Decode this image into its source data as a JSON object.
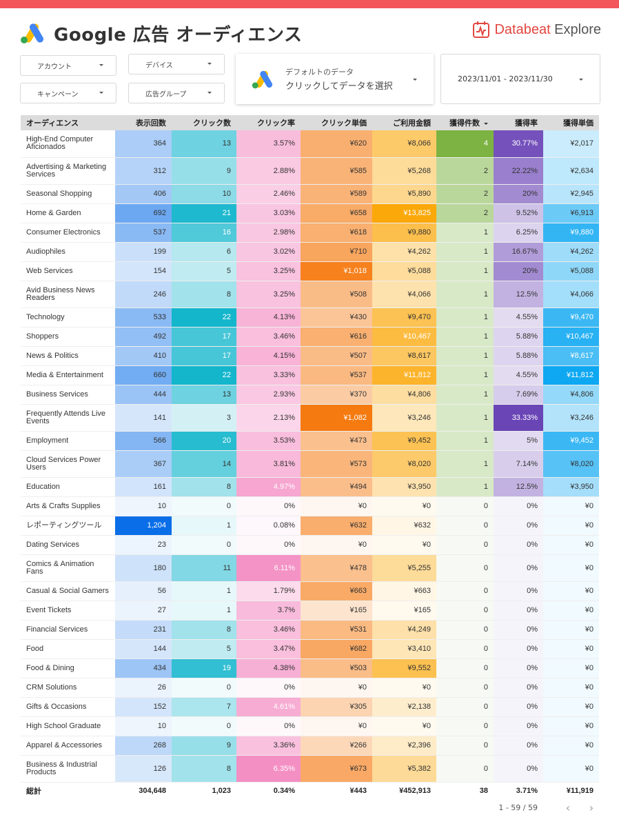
{
  "title": "Google 広告 オーディエンス",
  "brand": {
    "name_main": "Databeat",
    "name_sub": " Explore"
  },
  "filters": {
    "account": "アカウント",
    "campaign": "キャンペーン",
    "device": "デバイス",
    "adgroup": "広告グループ"
  },
  "data_selector": {
    "line1": "デフォルトのデータ",
    "line2": "クリックしてデータを選択"
  },
  "date_range": "2023/11/01 - 2023/11/30",
  "columns": [
    "オーディエンス",
    "表示回数",
    "クリック数",
    "クリック率",
    "クリック単価",
    "ご利用金額",
    "獲得件数",
    "獲得率",
    "獲得単価"
  ],
  "rows": [
    {
      "name": "High-End Computer Aficionados",
      "imp": 364,
      "imp_t": "364",
      "clk": 13,
      "clk_t": "13",
      "ctr": 3.57,
      "ctr_t": "3.57%",
      "cpc": 620,
      "cpc_t": "¥620",
      "cost": 8066,
      "cost_t": "¥8,066",
      "cv": 4,
      "cv_t": "4",
      "cvr": 30.77,
      "cvr_t": "30.77%",
      "cpa": 2017,
      "cpa_t": "¥2,017"
    },
    {
      "name": "Advertising & Marketing Services",
      "imp": 312,
      "imp_t": "312",
      "clk": 9,
      "clk_t": "9",
      "ctr": 2.88,
      "ctr_t": "2.88%",
      "cpc": 585,
      "cpc_t": "¥585",
      "cost": 5268,
      "cost_t": "¥5,268",
      "cv": 2,
      "cv_t": "2",
      "cvr": 22.22,
      "cvr_t": "22.22%",
      "cpa": 2634,
      "cpa_t": "¥2,634"
    },
    {
      "name": "Seasonal Shopping",
      "imp": 406,
      "imp_t": "406",
      "clk": 10,
      "clk_t": "10",
      "ctr": 2.46,
      "ctr_t": "2.46%",
      "cpc": 589,
      "cpc_t": "¥589",
      "cost": 5890,
      "cost_t": "¥5,890",
      "cv": 2,
      "cv_t": "2",
      "cvr": 20,
      "cvr_t": "20%",
      "cpa": 2945,
      "cpa_t": "¥2,945"
    },
    {
      "name": "Home & Garden",
      "imp": 692,
      "imp_t": "692",
      "clk": 21,
      "clk_t": "21",
      "ctr": 3.03,
      "ctr_t": "3.03%",
      "cpc": 658,
      "cpc_t": "¥658",
      "cost": 13825,
      "cost_t": "¥13,825",
      "cv": 2,
      "cv_t": "2",
      "cvr": 9.52,
      "cvr_t": "9.52%",
      "cpa": 6913,
      "cpa_t": "¥6,913"
    },
    {
      "name": "Consumer Electronics",
      "imp": 537,
      "imp_t": "537",
      "clk": 16,
      "clk_t": "16",
      "ctr": 2.98,
      "ctr_t": "2.98%",
      "cpc": 618,
      "cpc_t": "¥618",
      "cost": 9880,
      "cost_t": "¥9,880",
      "cv": 1,
      "cv_t": "1",
      "cvr": 6.25,
      "cvr_t": "6.25%",
      "cpa": 9880,
      "cpa_t": "¥9,880"
    },
    {
      "name": "Audiophiles",
      "imp": 199,
      "imp_t": "199",
      "clk": 6,
      "clk_t": "6",
      "ctr": 3.02,
      "ctr_t": "3.02%",
      "cpc": 710,
      "cpc_t": "¥710",
      "cost": 4262,
      "cost_t": "¥4,262",
      "cv": 1,
      "cv_t": "1",
      "cvr": 16.67,
      "cvr_t": "16.67%",
      "cpa": 4262,
      "cpa_t": "¥4,262"
    },
    {
      "name": "Web Services",
      "imp": 154,
      "imp_t": "154",
      "clk": 5,
      "clk_t": "5",
      "ctr": 3.25,
      "ctr_t": "3.25%",
      "cpc": 1018,
      "cpc_t": "¥1,018",
      "cost": 5088,
      "cost_t": "¥5,088",
      "cv": 1,
      "cv_t": "1",
      "cvr": 20,
      "cvr_t": "20%",
      "cpa": 5088,
      "cpa_t": "¥5,088"
    },
    {
      "name": "Avid Business News Readers",
      "imp": 246,
      "imp_t": "246",
      "clk": 8,
      "clk_t": "8",
      "ctr": 3.25,
      "ctr_t": "3.25%",
      "cpc": 508,
      "cpc_t": "¥508",
      "cost": 4066,
      "cost_t": "¥4,066",
      "cv": 1,
      "cv_t": "1",
      "cvr": 12.5,
      "cvr_t": "12.5%",
      "cpa": 4066,
      "cpa_t": "¥4,066"
    },
    {
      "name": "Technology",
      "imp": 533,
      "imp_t": "533",
      "clk": 22,
      "clk_t": "22",
      "ctr": 4.13,
      "ctr_t": "4.13%",
      "cpc": 430,
      "cpc_t": "¥430",
      "cost": 9470,
      "cost_t": "¥9,470",
      "cv": 1,
      "cv_t": "1",
      "cvr": 4.55,
      "cvr_t": "4.55%",
      "cpa": 9470,
      "cpa_t": "¥9,470"
    },
    {
      "name": "Shoppers",
      "imp": 492,
      "imp_t": "492",
      "clk": 17,
      "clk_t": "17",
      "ctr": 3.46,
      "ctr_t": "3.46%",
      "cpc": 616,
      "cpc_t": "¥616",
      "cost": 10467,
      "cost_t": "¥10,467",
      "cv": 1,
      "cv_t": "1",
      "cvr": 5.88,
      "cvr_t": "5.88%",
      "cpa": 10467,
      "cpa_t": "¥10,467"
    },
    {
      "name": "News & Politics",
      "imp": 410,
      "imp_t": "410",
      "clk": 17,
      "clk_t": "17",
      "ctr": 4.15,
      "ctr_t": "4.15%",
      "cpc": 507,
      "cpc_t": "¥507",
      "cost": 8617,
      "cost_t": "¥8,617",
      "cv": 1,
      "cv_t": "1",
      "cvr": 5.88,
      "cvr_t": "5.88%",
      "cpa": 8617,
      "cpa_t": "¥8,617"
    },
    {
      "name": "Media & Entertainment",
      "imp": 660,
      "imp_t": "660",
      "clk": 22,
      "clk_t": "22",
      "ctr": 3.33,
      "ctr_t": "3.33%",
      "cpc": 537,
      "cpc_t": "¥537",
      "cost": 11812,
      "cost_t": "¥11,812",
      "cv": 1,
      "cv_t": "1",
      "cvr": 4.55,
      "cvr_t": "4.55%",
      "cpa": 11812,
      "cpa_t": "¥11,812"
    },
    {
      "name": "Business Services",
      "imp": 444,
      "imp_t": "444",
      "clk": 13,
      "clk_t": "13",
      "ctr": 2.93,
      "ctr_t": "2.93%",
      "cpc": 370,
      "cpc_t": "¥370",
      "cost": 4806,
      "cost_t": "¥4,806",
      "cv": 1,
      "cv_t": "1",
      "cvr": 7.69,
      "cvr_t": "7.69%",
      "cpa": 4806,
      "cpa_t": "¥4,806"
    },
    {
      "name": "Frequently Attends Live Events",
      "imp": 141,
      "imp_t": "141",
      "clk": 3,
      "clk_t": "3",
      "ctr": 2.13,
      "ctr_t": "2.13%",
      "cpc": 1082,
      "cpc_t": "¥1,082",
      "cost": 3246,
      "cost_t": "¥3,246",
      "cv": 1,
      "cv_t": "1",
      "cvr": 33.33,
      "cvr_t": "33.33%",
      "cpa": 3246,
      "cpa_t": "¥3,246"
    },
    {
      "name": "Employment",
      "imp": 566,
      "imp_t": "566",
      "clk": 20,
      "clk_t": "20",
      "ctr": 3.53,
      "ctr_t": "3.53%",
      "cpc": 473,
      "cpc_t": "¥473",
      "cost": 9452,
      "cost_t": "¥9,452",
      "cv": 1,
      "cv_t": "1",
      "cvr": 5,
      "cvr_t": "5%",
      "cpa": 9452,
      "cpa_t": "¥9,452"
    },
    {
      "name": "Cloud Services Power Users",
      "imp": 367,
      "imp_t": "367",
      "clk": 14,
      "clk_t": "14",
      "ctr": 3.81,
      "ctr_t": "3.81%",
      "cpc": 573,
      "cpc_t": "¥573",
      "cost": 8020,
      "cost_t": "¥8,020",
      "cv": 1,
      "cv_t": "1",
      "cvr": 7.14,
      "cvr_t": "7.14%",
      "cpa": 8020,
      "cpa_t": "¥8,020"
    },
    {
      "name": "Education",
      "imp": 161,
      "imp_t": "161",
      "clk": 8,
      "clk_t": "8",
      "ctr": 4.97,
      "ctr_t": "4.97%",
      "cpc": 494,
      "cpc_t": "¥494",
      "cost": 3950,
      "cost_t": "¥3,950",
      "cv": 1,
      "cv_t": "1",
      "cvr": 12.5,
      "cvr_t": "12.5%",
      "cpa": 3950,
      "cpa_t": "¥3,950"
    },
    {
      "name": "Arts & Crafts Supplies",
      "imp": 10,
      "imp_t": "10",
      "clk": 0,
      "clk_t": "0",
      "ctr": 0,
      "ctr_t": "0%",
      "cpc": 0,
      "cpc_t": "¥0",
      "cost": 0,
      "cost_t": "¥0",
      "cv": 0,
      "cv_t": "0",
      "cvr": 0,
      "cvr_t": "0%",
      "cpa": 0,
      "cpa_t": "¥0"
    },
    {
      "name": "レポーティングツール",
      "imp": 1204,
      "imp_t": "1,204",
      "clk": 1,
      "clk_t": "1",
      "ctr": 0.08,
      "ctr_t": "0.08%",
      "cpc": 632,
      "cpc_t": "¥632",
      "cost": 632,
      "cost_t": "¥632",
      "cv": 0,
      "cv_t": "0",
      "cvr": 0,
      "cvr_t": "0%",
      "cpa": 0,
      "cpa_t": "¥0"
    },
    {
      "name": "Dating Services",
      "imp": 23,
      "imp_t": "23",
      "clk": 0,
      "clk_t": "0",
      "ctr": 0,
      "ctr_t": "0%",
      "cpc": 0,
      "cpc_t": "¥0",
      "cost": 0,
      "cost_t": "¥0",
      "cv": 0,
      "cv_t": "0",
      "cvr": 0,
      "cvr_t": "0%",
      "cpa": 0,
      "cpa_t": "¥0"
    },
    {
      "name": "Comics & Animation Fans",
      "imp": 180,
      "imp_t": "180",
      "clk": 11,
      "clk_t": "11",
      "ctr": 6.11,
      "ctr_t": "6.11%",
      "cpc": 478,
      "cpc_t": "¥478",
      "cost": 5255,
      "cost_t": "¥5,255",
      "cv": 0,
      "cv_t": "0",
      "cvr": 0,
      "cvr_t": "0%",
      "cpa": 0,
      "cpa_t": "¥0"
    },
    {
      "name": "Casual & Social Gamers",
      "imp": 56,
      "imp_t": "56",
      "clk": 1,
      "clk_t": "1",
      "ctr": 1.79,
      "ctr_t": "1.79%",
      "cpc": 663,
      "cpc_t": "¥663",
      "cost": 663,
      "cost_t": "¥663",
      "cv": 0,
      "cv_t": "0",
      "cvr": 0,
      "cvr_t": "0%",
      "cpa": 0,
      "cpa_t": "¥0"
    },
    {
      "name": "Event Tickets",
      "imp": 27,
      "imp_t": "27",
      "clk": 1,
      "clk_t": "1",
      "ctr": 3.7,
      "ctr_t": "3.7%",
      "cpc": 165,
      "cpc_t": "¥165",
      "cost": 165,
      "cost_t": "¥165",
      "cv": 0,
      "cv_t": "0",
      "cvr": 0,
      "cvr_t": "0%",
      "cpa": 0,
      "cpa_t": "¥0"
    },
    {
      "name": "Financial Services",
      "imp": 231,
      "imp_t": "231",
      "clk": 8,
      "clk_t": "8",
      "ctr": 3.46,
      "ctr_t": "3.46%",
      "cpc": 531,
      "cpc_t": "¥531",
      "cost": 4249,
      "cost_t": "¥4,249",
      "cv": 0,
      "cv_t": "0",
      "cvr": 0,
      "cvr_t": "0%",
      "cpa": 0,
      "cpa_t": "¥0"
    },
    {
      "name": "Food",
      "imp": 144,
      "imp_t": "144",
      "clk": 5,
      "clk_t": "5",
      "ctr": 3.47,
      "ctr_t": "3.47%",
      "cpc": 682,
      "cpc_t": "¥682",
      "cost": 3410,
      "cost_t": "¥3,410",
      "cv": 0,
      "cv_t": "0",
      "cvr": 0,
      "cvr_t": "0%",
      "cpa": 0,
      "cpa_t": "¥0"
    },
    {
      "name": "Food & Dining",
      "imp": 434,
      "imp_t": "434",
      "clk": 19,
      "clk_t": "19",
      "ctr": 4.38,
      "ctr_t": "4.38%",
      "cpc": 503,
      "cpc_t": "¥503",
      "cost": 9552,
      "cost_t": "¥9,552",
      "cv": 0,
      "cv_t": "0",
      "cvr": 0,
      "cvr_t": "0%",
      "cpa": 0,
      "cpa_t": "¥0"
    },
    {
      "name": "CRM Solutions",
      "imp": 26,
      "imp_t": "26",
      "clk": 0,
      "clk_t": "0",
      "ctr": 0,
      "ctr_t": "0%",
      "cpc": 0,
      "cpc_t": "¥0",
      "cost": 0,
      "cost_t": "¥0",
      "cv": 0,
      "cv_t": "0",
      "cvr": 0,
      "cvr_t": "0%",
      "cpa": 0,
      "cpa_t": "¥0"
    },
    {
      "name": "Gifts & Occasions",
      "imp": 152,
      "imp_t": "152",
      "clk": 7,
      "clk_t": "7",
      "ctr": 4.61,
      "ctr_t": "4.61%",
      "cpc": 305,
      "cpc_t": "¥305",
      "cost": 2138,
      "cost_t": "¥2,138",
      "cv": 0,
      "cv_t": "0",
      "cvr": 0,
      "cvr_t": "0%",
      "cpa": 0,
      "cpa_t": "¥0"
    },
    {
      "name": "High School Graduate",
      "imp": 10,
      "imp_t": "10",
      "clk": 0,
      "clk_t": "0",
      "ctr": 0,
      "ctr_t": "0%",
      "cpc": 0,
      "cpc_t": "¥0",
      "cost": 0,
      "cost_t": "¥0",
      "cv": 0,
      "cv_t": "0",
      "cvr": 0,
      "cvr_t": "0%",
      "cpa": 0,
      "cpa_t": "¥0"
    },
    {
      "name": "Apparel & Accessories",
      "imp": 268,
      "imp_t": "268",
      "clk": 9,
      "clk_t": "9",
      "ctr": 3.36,
      "ctr_t": "3.36%",
      "cpc": 266,
      "cpc_t": "¥266",
      "cost": 2396,
      "cost_t": "¥2,396",
      "cv": 0,
      "cv_t": "0",
      "cvr": 0,
      "cvr_t": "0%",
      "cpa": 0,
      "cpa_t": "¥0"
    },
    {
      "name": "Business & Industrial Products",
      "imp": 126,
      "imp_t": "126",
      "clk": 8,
      "clk_t": "8",
      "ctr": 6.35,
      "ctr_t": "6.35%",
      "cpc": 673,
      "cpc_t": "¥673",
      "cost": 5382,
      "cost_t": "¥5,382",
      "cv": 0,
      "cv_t": "0",
      "cvr": 0,
      "cvr_t": "0%",
      "cpa": 0,
      "cpa_t": "¥0"
    }
  ],
  "totals": {
    "label": "総計",
    "imp": "304,648",
    "clk": "1,023",
    "ctr": "0.34%",
    "cpc": "¥443",
    "cost": "¥452,913",
    "cv": "38",
    "cvr": "3.71%",
    "cpa": "¥11,919"
  },
  "pager": {
    "text": "1 - 59 / 59",
    "prev": "‹",
    "next": "›"
  },
  "colors": {
    "imp": "#0a6ee8",
    "clk": "#14b6cc",
    "ctr": "#f48fc4",
    "cpc": "#f57a10",
    "cost": "#fba80a",
    "cv": "#7cb342",
    "cvr": "#6a45b6",
    "cpa": "#0ea8f2",
    "header_bg": "#dcdcdc",
    "top_bar": "#f2565a",
    "brand": "#e2463f"
  },
  "icons": {
    "logo": "google-ads-logo",
    "brand": "databeat-logo",
    "caret": "caret-down-icon"
  }
}
